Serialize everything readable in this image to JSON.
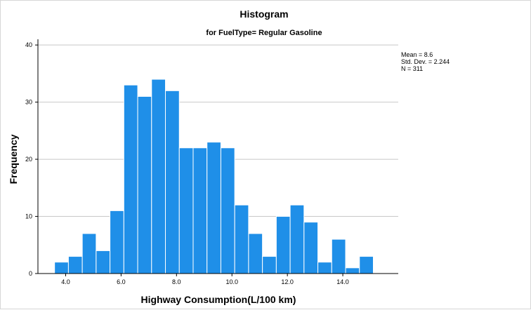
{
  "chart_data": {
    "type": "bar",
    "title": "Histogram",
    "subtitle": "for FuelType= Regular Gasoline",
    "xlabel": "Highway Consumption(L/100 km)",
    "ylabel": "Frequency",
    "bin_start": 3.6,
    "bin_width": 0.5,
    "values": [
      2,
      3,
      7,
      4,
      11,
      33,
      31,
      34,
      32,
      22,
      22,
      23,
      22,
      12,
      7,
      3,
      10,
      12,
      9,
      2,
      6,
      1,
      3
    ],
    "bar_color": "#1f8fe8",
    "xlim": [
      3.0,
      16.0
    ],
    "ylim": [
      0,
      41
    ],
    "xticks": [
      4.0,
      6.0,
      8.0,
      10.0,
      12.0,
      14.0
    ],
    "xtick_labels": [
      "4.0",
      "6.0",
      "8.0",
      "10.0",
      "12.0",
      "14.0"
    ],
    "yticks": [
      0,
      10,
      20,
      30,
      40
    ],
    "ytick_labels": [
      "0",
      "10",
      "20",
      "30",
      "40"
    ],
    "grid": true,
    "stats": {
      "mean": "Mean = 8.6",
      "std": "Std. Dev. = 2.244",
      "n": "N = 311"
    }
  }
}
